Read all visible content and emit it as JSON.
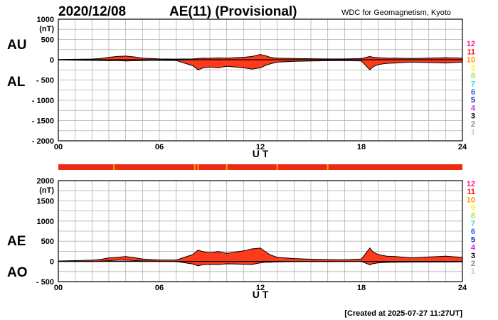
{
  "header": {
    "date": "2020/12/08",
    "title": "AE(11) (Provisional)",
    "source": "WDC for Geomagnetism, Kyoto"
  },
  "footer": {
    "created": "[Created at 2025-07-27 11:27UT]"
  },
  "colors": {
    "fill": "#ff3a1a",
    "trace": "#000000",
    "grid": "#b0b0b0",
    "status_bar": "#ee2a10",
    "status_marks": "#f2a020"
  },
  "level_legend": [
    {
      "label": "12",
      "color": "#ff1a8c"
    },
    {
      "label": "11",
      "color": "#ff1a1a"
    },
    {
      "label": "10",
      "color": "#ff9a00"
    },
    {
      "label": "9",
      "color": "#ffee33"
    },
    {
      "label": "8",
      "color": "#99ee33"
    },
    {
      "label": "7",
      "color": "#33dddd"
    },
    {
      "label": "6",
      "color": "#2266ff"
    },
    {
      "label": "5",
      "color": "#2222aa"
    },
    {
      "label": "4",
      "color": "#dd22dd"
    },
    {
      "label": "3",
      "color": "#000000"
    },
    {
      "label": "2",
      "color": "#888888"
    },
    {
      "label": "1",
      "color": "#cccccc"
    }
  ],
  "status_bar": {
    "mark_hours": [
      3.3,
      8.1,
      8.3,
      10.0,
      13.0,
      16.0
    ]
  },
  "chart_data": [
    {
      "type": "area",
      "panel": "top",
      "ylabel": "(nT)",
      "xlabel": "U T",
      "ylim": [
        -2000,
        1000
      ],
      "yticks": [
        "1000",
        "500",
        "0",
        "- 500",
        "- 1000",
        "- 1500",
        "- 2000"
      ],
      "ytick_values": [
        1000,
        500,
        0,
        -500,
        -1000,
        -1500,
        -2000
      ],
      "xlim": [
        0,
        24
      ],
      "xticks": [
        "00",
        "06",
        "12",
        "18",
        "24"
      ],
      "xtick_values": [
        0,
        6,
        12,
        18,
        24
      ],
      "upper_label": "AU",
      "lower_label": "AL",
      "x": [
        0,
        1,
        2,
        2.5,
        3,
        3.5,
        4,
        4.5,
        5,
        5.5,
        6,
        7,
        8,
        8.3,
        8.6,
        9,
        9.5,
        10,
        10.5,
        11,
        11.5,
        12,
        12.3,
        12.6,
        13,
        14,
        15,
        16,
        17,
        18,
        18.5,
        18.7,
        19,
        19.5,
        20,
        21,
        22,
        23,
        24
      ],
      "series": [
        {
          "name": "AU",
          "values": [
            5,
            10,
            15,
            30,
            60,
            80,
            90,
            70,
            40,
            30,
            20,
            15,
            20,
            30,
            40,
            35,
            45,
            40,
            50,
            60,
            80,
            130,
            100,
            60,
            40,
            30,
            25,
            20,
            20,
            30,
            80,
            60,
            50,
            40,
            40,
            30,
            40,
            50,
            40
          ]
        },
        {
          "name": "AL",
          "values": [
            -5,
            -10,
            -15,
            -20,
            -25,
            -20,
            -30,
            -25,
            -20,
            -15,
            -15,
            -20,
            -150,
            -250,
            -200,
            -180,
            -200,
            -160,
            -180,
            -200,
            -230,
            -200,
            -140,
            -100,
            -60,
            -40,
            -30,
            -25,
            -20,
            -30,
            -250,
            -170,
            -120,
            -90,
            -80,
            -60,
            -70,
            -80,
            -60
          ]
        }
      ]
    },
    {
      "type": "area",
      "panel": "bottom",
      "ylabel": "(nT)",
      "xlabel": "U T",
      "ylim": [
        -500,
        2000
      ],
      "yticks": [
        "2000",
        "1500",
        "1000",
        "500",
        "0",
        "- 500"
      ],
      "ytick_values": [
        2000,
        1500,
        1000,
        500,
        0,
        -500
      ],
      "xlim": [
        0,
        24
      ],
      "xticks": [
        "00",
        "06",
        "12",
        "18",
        "24"
      ],
      "xtick_values": [
        0,
        6,
        12,
        18,
        24
      ],
      "upper_label": "AE",
      "lower_label": "AO",
      "x": [
        0,
        1,
        2,
        2.5,
        3,
        3.5,
        4,
        4.5,
        5,
        5.5,
        6,
        7,
        8,
        8.3,
        8.6,
        9,
        9.5,
        10,
        10.5,
        11,
        11.5,
        12,
        12.3,
        12.6,
        13,
        14,
        15,
        16,
        17,
        18,
        18.5,
        18.7,
        19,
        19.5,
        20,
        21,
        22,
        23,
        24
      ],
      "series": [
        {
          "name": "AE",
          "values": [
            10,
            20,
            30,
            50,
            85,
            100,
            120,
            95,
            60,
            45,
            35,
            35,
            170,
            280,
            240,
            215,
            245,
            200,
            230,
            260,
            310,
            330,
            240,
            160,
            100,
            70,
            55,
            45,
            40,
            60,
            330,
            230,
            170,
            130,
            120,
            90,
            110,
            130,
            100
          ]
        },
        {
          "name": "AO",
          "values": [
            0,
            0,
            0,
            5,
            18,
            30,
            30,
            22,
            10,
            8,
            3,
            -3,
            -65,
            -110,
            -80,
            -72,
            -78,
            -60,
            -65,
            -70,
            -75,
            -35,
            -20,
            -20,
            -10,
            -5,
            -3,
            -3,
            0,
            0,
            -85,
            -55,
            -35,
            -25,
            -20,
            -15,
            -15,
            -15,
            -10
          ]
        }
      ]
    }
  ]
}
